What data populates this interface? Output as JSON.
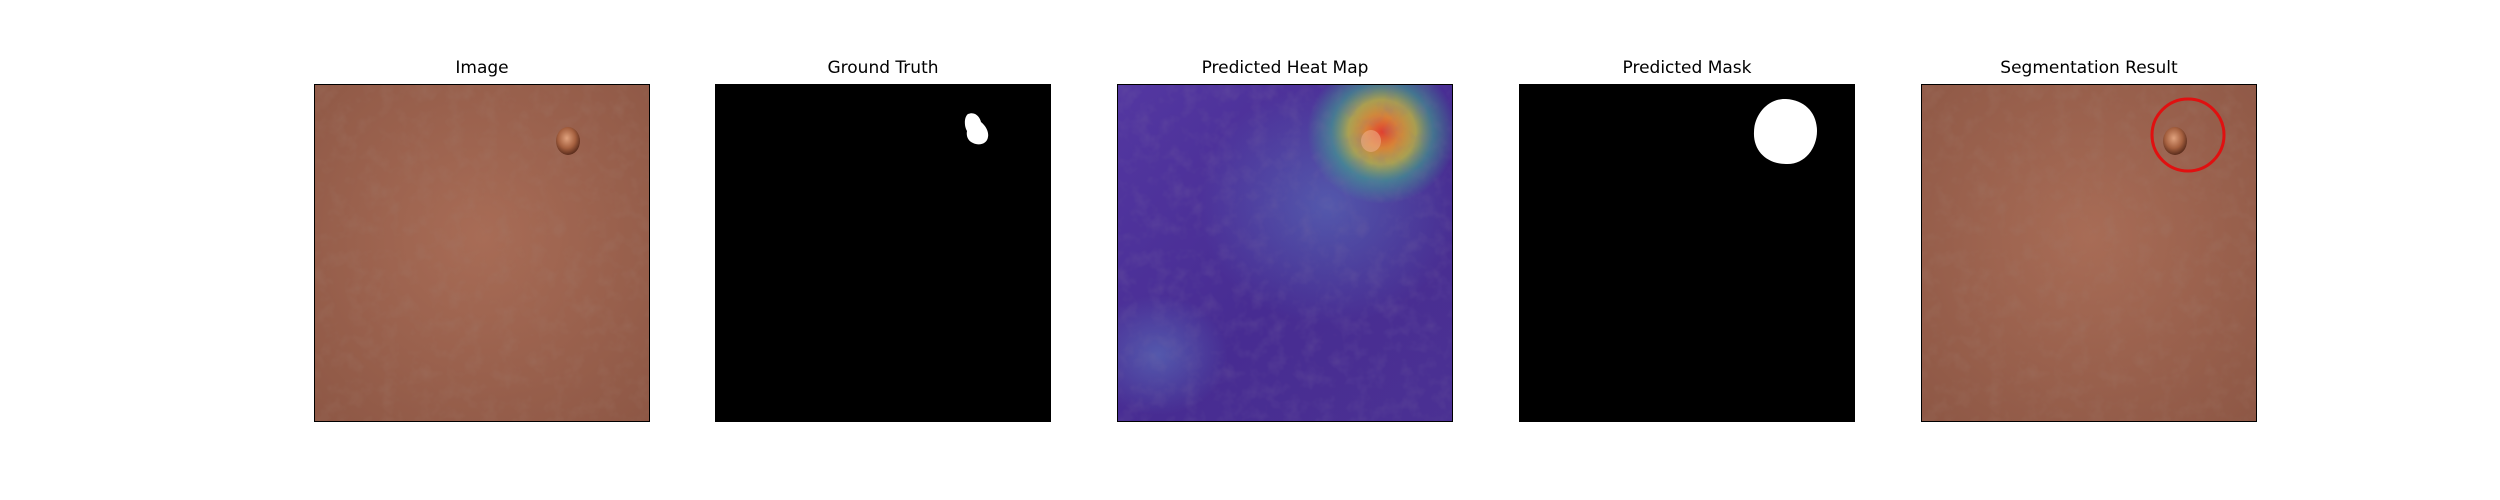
{
  "figure": {
    "panels": [
      {
        "title": "Image",
        "kind": "skin-photo"
      },
      {
        "title": "Ground Truth",
        "kind": "binary-mask-ground-truth"
      },
      {
        "title": "Predicted Heat Map",
        "kind": "heatmap-overlay"
      },
      {
        "title": "Predicted Mask",
        "kind": "binary-mask-predicted"
      },
      {
        "title": "Segmentation Result",
        "kind": "skin-photo-with-circle"
      }
    ],
    "colors": {
      "skin_base": "#9c6450",
      "mask_background": "#000000",
      "mask_foreground": "#ffffff",
      "heatmap_low": "#4a2f96",
      "heatmap_high": "#e8402a",
      "result_circle": "#e01010"
    }
  }
}
